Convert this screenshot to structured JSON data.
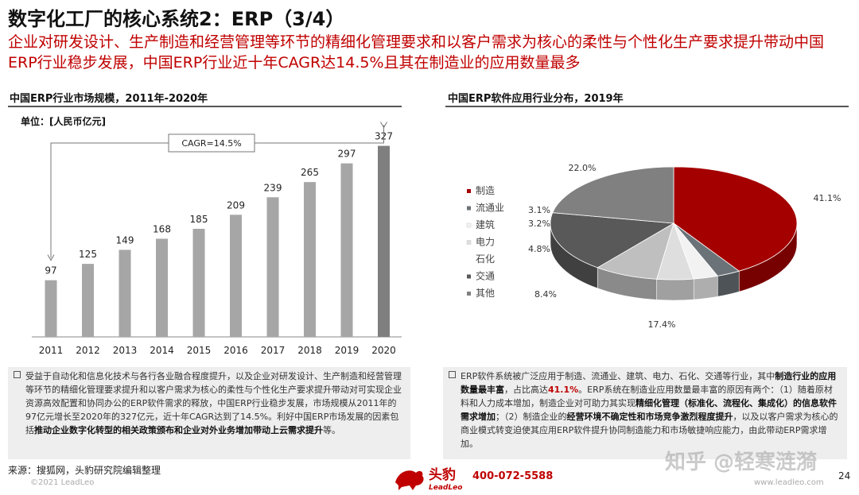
{
  "header": {
    "title": "数字化工厂的核心系统2：ERP（3/4）",
    "subtitle": "企业对研发设计、生产制造和经营管理等环节的精细化管理要求和以客户需求为核心的柔性与个性化生产要求提升带动中国ERP行业稳步发展，中国ERP行业近十年CAGR达14.5%且其在制造业的应用数量最多"
  },
  "left": {
    "heading": "中国ERP行业市场规模，2011年-2020年",
    "unit": "单位：[人民币亿元]",
    "cagr_label": "CAGR=14.5%",
    "text_parts": [
      {
        "t": "受益于自动化和信息化技术与各行各业融合程度提升，以及企业对研发设计、生产制造和经营管理等环节的精细化管理要求提升和以客户需求为核心的柔性与个性化生产要求提升带动对可实现企业资源高效配置和协同办公的ERP软件需求的释放，中国ERP行业稳步发展，市场规模从2011年的97亿元增长至2020年的327亿元，近十年CAGR达到了14.5%。利好中国ERP市场发展的因素包括",
        "s": "n"
      },
      {
        "t": "推动企业数字化转型的相关政策颁布和企业对外业务增加带动上云需求提升",
        "s": "b"
      },
      {
        "t": "等。",
        "s": "n"
      }
    ]
  },
  "right": {
    "heading": "中国ERP软件应用行业分布，2019年",
    "text_parts": [
      {
        "t": "ERP软件系统被广泛应用于制造、流通业、建筑、电力、石化、交通等行业，其中",
        "s": "n"
      },
      {
        "t": "制造行业的应用数量最丰富",
        "s": "b"
      },
      {
        "t": "，占比高达",
        "s": "n"
      },
      {
        "t": "41.1%",
        "s": "r"
      },
      {
        "t": "。ERP系统在制造业应用数量最丰富的原因有两个：（1）随着原材料和人力成本增加，制造企业对可助力其实现",
        "s": "n"
      },
      {
        "t": "精细化管理（标准化、流程化、集成化）的信息软件需求增加",
        "s": "b"
      },
      {
        "t": "；（2）制造企业的",
        "s": "n"
      },
      {
        "t": "经营环境不确定性和市场竞争激烈程度提升",
        "s": "b"
      },
      {
        "t": "，以及以客户需求为核心的商业模式转变迫使其应用ERP软件提升协同制造能力和市场敏捷响应能力，由此带动ERP需求增加。",
        "s": "n"
      }
    ]
  },
  "chart_data": [
    {
      "type": "bar",
      "categories": [
        "2011",
        "2012",
        "2013",
        "2014",
        "2015",
        "2016",
        "2017",
        "2018",
        "2019",
        "2020"
      ],
      "values": [
        97,
        125,
        149,
        168,
        185,
        209,
        239,
        265,
        297,
        327
      ],
      "title": "中国ERP行业市场规模，2011年-2020年",
      "ylabel": "单位：[人民币亿元]",
      "annotation": "CAGR=14.5%",
      "ylim": [
        0,
        340
      ],
      "colors": [
        "#a6a6a6",
        "#a6a6a6",
        "#a6a6a6",
        "#a6a6a6",
        "#a6a6a6",
        "#a6a6a6",
        "#a6a6a6",
        "#a6a6a6",
        "#a6a6a6",
        "#7f7f7f"
      ],
      "grid": false
    },
    {
      "type": "pie",
      "title": "中国ERP软件应用行业分布，2019年",
      "labels": [
        "制造",
        "流通业",
        "建筑",
        "电力",
        "石化",
        "交通",
        "其他"
      ],
      "values": [
        41.1,
        3.1,
        3.2,
        4.8,
        8.4,
        17.4,
        22.0
      ],
      "value_labels": [
        "41.1%",
        "3.1%",
        "3.2%",
        "4.8%",
        "8.4%",
        "17.4%",
        "22.0%"
      ],
      "colors": [
        "#a50000",
        "#6b7378",
        "#f2f2f2",
        "#dedede",
        "#bfbfbf",
        "#595959",
        "#808080"
      ],
      "legend_labels": [
        "制造",
        "流通业",
        "建筑",
        "电力",
        "石化",
        "交通",
        "其他"
      ],
      "legend_position": "left"
    }
  ],
  "footer": {
    "source": "来源：搜狐网，头豹研究院编辑整理",
    "copyright": "©2021 LeadLeo",
    "logo_cn": "头豹",
    "logo_en": "LeadLeo",
    "phone": "400-072-5588",
    "watermark": "知乎 @轻寒涟漪",
    "website": "www.leadleo.com",
    "page": "24"
  }
}
